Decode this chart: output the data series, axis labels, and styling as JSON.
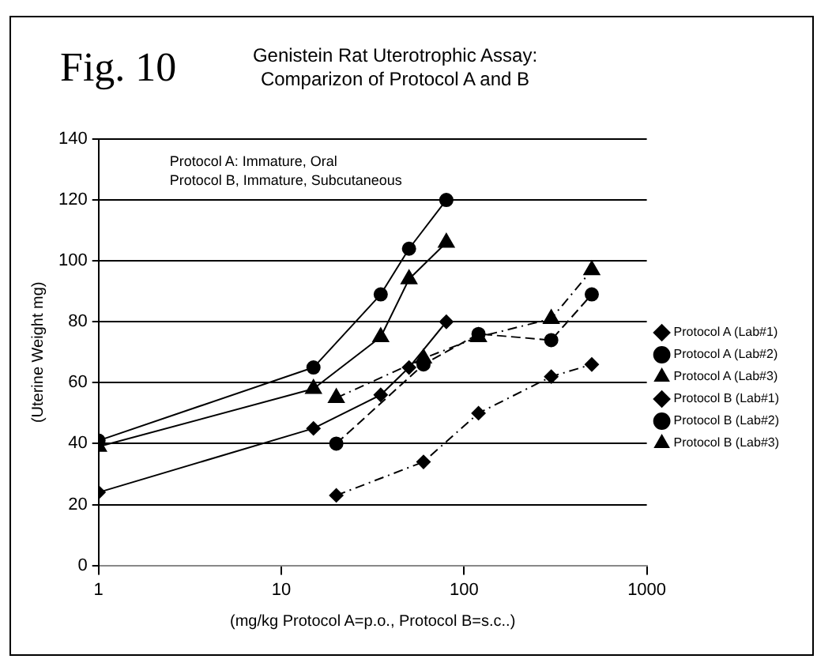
{
  "chart_data": {
    "type": "line",
    "title": "Genistein Rat Uterotrophic Assay:\nComparizon of Protocol A and B",
    "xlabel": "(mg/kg Protocol A=p.o., Protocol B=s.c..)",
    "ylabel": "(Uterine Weight mg)",
    "annotations": [
      "Fig. 10",
      "Protocol A: Immature, Oral\nProtocol B, Immature, Subcutaneous"
    ],
    "log": "x",
    "xlim": [
      1,
      1000
    ],
    "xticks": [
      1,
      10,
      100,
      1000
    ],
    "ylim": [
      0,
      140
    ],
    "yticks": [
      0,
      20,
      40,
      60,
      80,
      100,
      120,
      140
    ],
    "grid": "y",
    "legend": "right",
    "series": [
      {
        "name": "Protocol A (Lab#1)",
        "color": "#000000",
        "marker": "diamond",
        "line_style": "dotted",
        "x": [
          20,
          60,
          120,
          300,
          500
        ],
        "values": [
          23,
          34,
          50,
          62,
          66
        ]
      },
      {
        "name": "Protocol A (Lab#2)",
        "color": "#000000",
        "marker": "circle",
        "line_style": "dashed",
        "x": [
          20,
          60,
          120,
          300,
          500
        ],
        "values": [
          40,
          66,
          76,
          74,
          89
        ]
      },
      {
        "name": "Protocol A (Lab#3)",
        "color": "#000000",
        "marker": "triangle",
        "line_style": "dotted",
        "x": [
          20,
          60,
          120,
          300,
          500
        ],
        "values": [
          55,
          68,
          75,
          81,
          97
        ]
      },
      {
        "name": "Protocol B (Lab#1)",
        "color": "#000000",
        "marker": "diamond",
        "line_style": "solid",
        "x": [
          1,
          15,
          35,
          50,
          80
        ],
        "values": [
          24,
          45,
          56,
          65,
          80
        ]
      },
      {
        "name": "Protocol B (Lab#2)",
        "color": "#000000",
        "marker": "circle",
        "line_style": "solid",
        "x": [
          1,
          15,
          35,
          50,
          80
        ],
        "values": [
          41,
          65,
          89,
          104,
          120
        ]
      },
      {
        "name": "Protocol B (Lab#3)",
        "color": "#000000",
        "marker": "triangle",
        "line_style": "solid",
        "x": [
          1,
          15,
          35,
          50,
          80
        ],
        "values": [
          39,
          58,
          75,
          94,
          106
        ]
      }
    ]
  }
}
